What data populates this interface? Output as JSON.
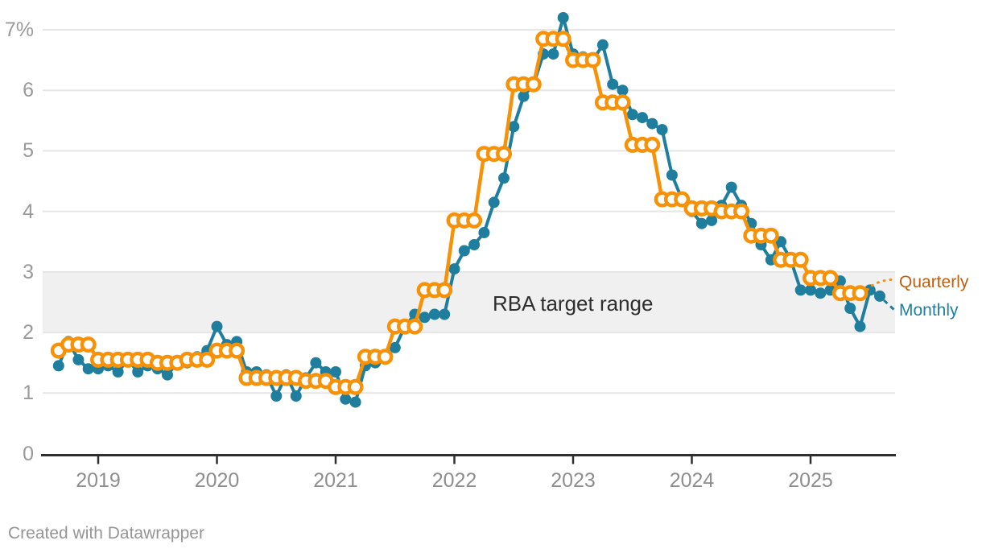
{
  "page": {
    "footer": "Created with Datawrapper"
  },
  "colors": {
    "monthly_line": "#1f7e9d",
    "quarterly_line": "#f79208",
    "quarterly_label_text": "#c05f11",
    "monthly_label_text": "#1d81a2",
    "band_fill": "#f0f0f0",
    "gridline": "#e5e5e5",
    "axis": "#2f2f2f",
    "x_tick_label": "#8e8e8e",
    "y_tick_label": "#9a9a9a",
    "band_label_text": "#2e2e2e",
    "footer_text": "#959595"
  },
  "chart_data": {
    "type": "line",
    "unit": "%",
    "ylim": [
      0,
      7
    ],
    "grid": true,
    "y_ticks": [
      {
        "value": 7,
        "label": "7%"
      },
      {
        "value": 6,
        "label": "6"
      },
      {
        "value": 5,
        "label": "5"
      },
      {
        "value": 4,
        "label": "4"
      },
      {
        "value": 3,
        "label": "3"
      },
      {
        "value": 2,
        "label": "2"
      },
      {
        "value": 1,
        "label": "1"
      },
      {
        "value": 0,
        "label": "0"
      }
    ],
    "x_tick_labels": [
      "2019",
      "2020",
      "2021",
      "2022",
      "2023",
      "2024",
      "2025"
    ],
    "band": {
      "from": 2,
      "to": 3,
      "label": "RBA target range"
    },
    "legend_position": "right-of-last-points",
    "series": [
      {
        "name": "Monthly",
        "frequency": "monthly",
        "start": "2018-09",
        "end": "2025-08",
        "values": [
          1.45,
          1.85,
          1.55,
          1.4,
          1.4,
          1.45,
          1.35,
          1.55,
          1.35,
          1.45,
          1.4,
          1.3,
          1.5,
          1.5,
          1.6,
          1.7,
          2.1,
          1.8,
          1.85,
          1.35,
          1.35,
          1.3,
          0.95,
          1.3,
          0.95,
          1.25,
          1.5,
          1.35,
          1.35,
          0.9,
          0.85,
          1.45,
          1.5,
          1.6,
          1.75,
          2.1,
          2.3,
          2.25,
          2.3,
          2.3,
          3.05,
          3.35,
          3.45,
          3.65,
          4.15,
          4.55,
          5.4,
          5.9,
          6.1,
          6.6,
          6.6,
          7.2,
          6.6,
          6.55,
          6.5,
          6.75,
          6.1,
          6.0,
          5.6,
          5.55,
          5.45,
          5.35,
          4.6,
          4.2,
          4.0,
          3.8,
          3.85,
          4.1,
          4.4,
          4.1,
          3.8,
          3.45,
          3.2,
          3.5,
          3.2,
          2.7,
          2.7,
          2.65,
          2.7,
          2.85,
          2.4,
          2.1,
          2.7,
          2.6
        ]
      },
      {
        "name": "Quarterly",
        "frequency": "quarterly",
        "start": "2018-Q3",
        "end": "2025-Q2",
        "values": [
          1.7,
          1.8,
          1.55,
          1.55,
          1.5,
          1.55,
          1.7,
          1.25,
          1.25,
          1.2,
          1.1,
          1.6,
          2.1,
          2.7,
          3.85,
          4.95,
          6.1,
          6.85,
          6.5,
          5.8,
          5.1,
          4.2,
          4.05,
          4.0,
          3.6,
          3.2,
          2.9,
          2.65
        ]
      }
    ]
  }
}
